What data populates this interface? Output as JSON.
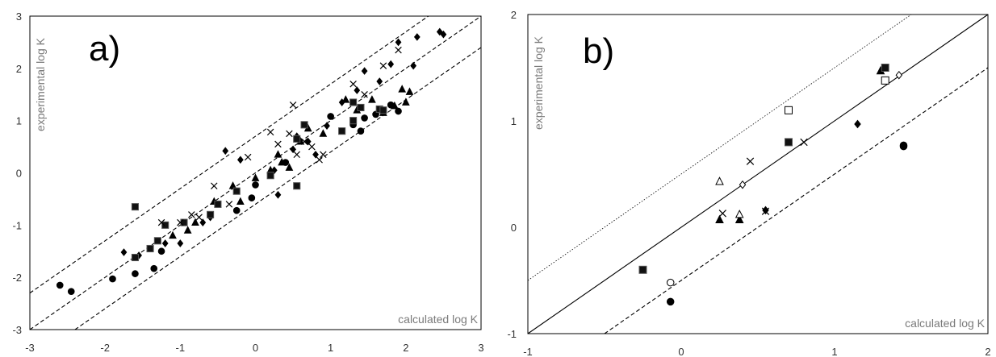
{
  "chart_data": [
    {
      "type": "scatter",
      "panel_label": "a)",
      "xlabel": "calculated log K",
      "ylabel": "experimental log K",
      "xlim": [
        -3,
        3
      ],
      "ylim": [
        -3,
        3
      ],
      "xticks": [
        "-3",
        "-2",
        "-1",
        "0",
        "1",
        "2",
        "3"
      ],
      "yticks": [
        "-3",
        "-2",
        "-1",
        "0",
        "1",
        "2",
        "3"
      ],
      "grid": false,
      "lines": [
        {
          "style": "dashed",
          "intercept": 0.7
        },
        {
          "style": "dashed",
          "intercept": 0
        },
        {
          "style": "dashed",
          "intercept": -0.6
        }
      ],
      "series": [
        {
          "marker": "circle",
          "points": [
            [
              -2.6,
              -2.15
            ],
            [
              -2.45,
              -2.27
            ],
            [
              -1.9,
              -2.03
            ],
            [
              -1.6,
              -1.93
            ],
            [
              -1.35,
              -1.83
            ],
            [
              -1.25,
              -1.5
            ],
            [
              -0.25,
              -0.72
            ],
            [
              -0.05,
              -0.48
            ],
            [
              0,
              -0.23
            ],
            [
              0.4,
              0.2
            ],
            [
              1,
              1.08
            ],
            [
              1.3,
              0.92
            ],
            [
              1.4,
              0.8
            ],
            [
              1.45,
              1.05
            ],
            [
              1.6,
              1.12
            ],
            [
              1.8,
              1.3
            ],
            [
              1.9,
              1.18
            ]
          ]
        },
        {
          "marker": "diamond",
          "points": [
            [
              -1.75,
              -1.52
            ],
            [
              -1.55,
              -1.58
            ],
            [
              -1.2,
              -1.35
            ],
            [
              -1,
              -1.35
            ],
            [
              -0.7,
              -0.95
            ],
            [
              -0.6,
              -0.85
            ],
            [
              -0.4,
              0.42
            ],
            [
              -0.2,
              0.25
            ],
            [
              0.25,
              0.05
            ],
            [
              0.3,
              -0.42
            ],
            [
              0.5,
              0.45
            ],
            [
              0.55,
              0.7
            ],
            [
              0.7,
              0.6
            ],
            [
              0.8,
              0.35
            ],
            [
              0.95,
              0.9
            ],
            [
              1.15,
              1.35
            ],
            [
              1.35,
              1.58
            ],
            [
              1.45,
              1.95
            ],
            [
              1.65,
              1.75
            ],
            [
              1.8,
              2.08
            ],
            [
              1.9,
              2.5
            ],
            [
              2.1,
              2.05
            ],
            [
              2.15,
              2.6
            ],
            [
              2.45,
              2.7
            ],
            [
              2.5,
              2.65
            ]
          ]
        },
        {
          "marker": "triangle",
          "points": [
            [
              -1.1,
              -1.2
            ],
            [
              -0.9,
              -1.1
            ],
            [
              -0.8,
              -0.95
            ],
            [
              -0.55,
              -0.55
            ],
            [
              -0.3,
              -0.25
            ],
            [
              -0.2,
              -0.55
            ],
            [
              0,
              -0.1
            ],
            [
              0.2,
              0.05
            ],
            [
              0.3,
              0.35
            ],
            [
              0.35,
              0.2
            ],
            [
              0.45,
              0.1
            ],
            [
              0.6,
              0.6
            ],
            [
              0.7,
              0.85
            ],
            [
              0.9,
              0.75
            ],
            [
              1.2,
              1.4
            ],
            [
              1.35,
              1.2
            ],
            [
              1.55,
              1.4
            ],
            [
              1.7,
              1.15
            ],
            [
              1.85,
              1.28
            ],
            [
              1.95,
              1.6
            ],
            [
              2,
              1.35
            ],
            [
              2.05,
              1.55
            ]
          ]
        },
        {
          "marker": "square",
          "points": [
            [
              -1.6,
              -0.65
            ],
            [
              -1.6,
              -1.62
            ],
            [
              -1.4,
              -1.45
            ],
            [
              -1.3,
              -1.3
            ],
            [
              -1.2,
              -1.0
            ],
            [
              -0.95,
              -0.95
            ],
            [
              -0.6,
              -0.8
            ],
            [
              -0.5,
              -0.6
            ],
            [
              -0.25,
              -0.35
            ],
            [
              0.2,
              -0.05
            ],
            [
              0.55,
              -0.25
            ],
            [
              0.55,
              0.65
            ],
            [
              0.65,
              0.92
            ],
            [
              1.15,
              0.8
            ],
            [
              1.3,
              1.0
            ],
            [
              1.3,
              1.35
            ],
            [
              1.4,
              1.25
            ],
            [
              1.65,
              1.22
            ],
            [
              1.7,
              1.2
            ]
          ]
        },
        {
          "marker": "cross",
          "points": [
            [
              -1.25,
              -0.95
            ],
            [
              -1,
              -0.95
            ],
            [
              -0.85,
              -0.8
            ],
            [
              -0.75,
              -0.85
            ],
            [
              -0.55,
              -0.25
            ],
            [
              -0.35,
              -0.6
            ],
            [
              -0.1,
              0.3
            ],
            [
              0.2,
              0.78
            ],
            [
              0.3,
              0.55
            ],
            [
              0.45,
              0.75
            ],
            [
              0.5,
              1.3
            ],
            [
              0.55,
              0.35
            ],
            [
              0.65,
              0.6
            ],
            [
              0.75,
              0.5
            ],
            [
              0.85,
              0.25
            ],
            [
              0.9,
              0.35
            ],
            [
              1.3,
              1.7
            ],
            [
              1.45,
              1.5
            ],
            [
              1.7,
              2.05
            ],
            [
              1.9,
              2.35
            ]
          ]
        }
      ]
    },
    {
      "type": "scatter",
      "panel_label": "b)",
      "xlabel": "calculated log K",
      "ylabel": "experimental log K",
      "xlim": [
        -1,
        2
      ],
      "ylim": [
        -1,
        2
      ],
      "xticks": [
        "-1",
        "0",
        "1",
        "2"
      ],
      "yticks": [
        "-1",
        "0",
        "1",
        "2"
      ],
      "grid": false,
      "lines": [
        {
          "style": "dotted",
          "intercept": 0.5
        },
        {
          "style": "solid",
          "intercept": 0
        },
        {
          "style": "dashed",
          "intercept": -0.5
        }
      ],
      "series": [
        {
          "marker": "circle",
          "points": [
            [
              -0.07,
              -0.7
            ],
            [
              1.45,
              0.77
            ],
            [
              1.45,
              0.76
            ]
          ]
        },
        {
          "marker": "open-circle",
          "points": [
            [
              -0.07,
              -0.52
            ]
          ]
        },
        {
          "marker": "diamond",
          "points": [
            [
              1.15,
              0.97
            ],
            [
              0.55,
              0.16
            ]
          ]
        },
        {
          "marker": "open-diamond",
          "points": [
            [
              0.4,
              0.4
            ],
            [
              1.42,
              1.43
            ]
          ]
        },
        {
          "marker": "triangle",
          "points": [
            [
              0.25,
              0.07
            ],
            [
              0.38,
              0.07
            ],
            [
              1.3,
              1.47
            ]
          ]
        },
        {
          "marker": "open-triangle",
          "points": [
            [
              0.25,
              0.43
            ],
            [
              0.38,
              0.12
            ]
          ]
        },
        {
          "marker": "square",
          "points": [
            [
              -0.25,
              -0.4
            ],
            [
              0.7,
              0.8
            ],
            [
              1.33,
              1.5
            ]
          ]
        },
        {
          "marker": "open-square",
          "points": [
            [
              0.7,
              1.1
            ],
            [
              1.33,
              1.38
            ]
          ]
        },
        {
          "marker": "cross",
          "points": [
            [
              0.45,
              0.62
            ],
            [
              0.27,
              0.13
            ],
            [
              0.8,
              0.8
            ],
            [
              0.55,
              0.15
            ]
          ]
        }
      ]
    }
  ]
}
